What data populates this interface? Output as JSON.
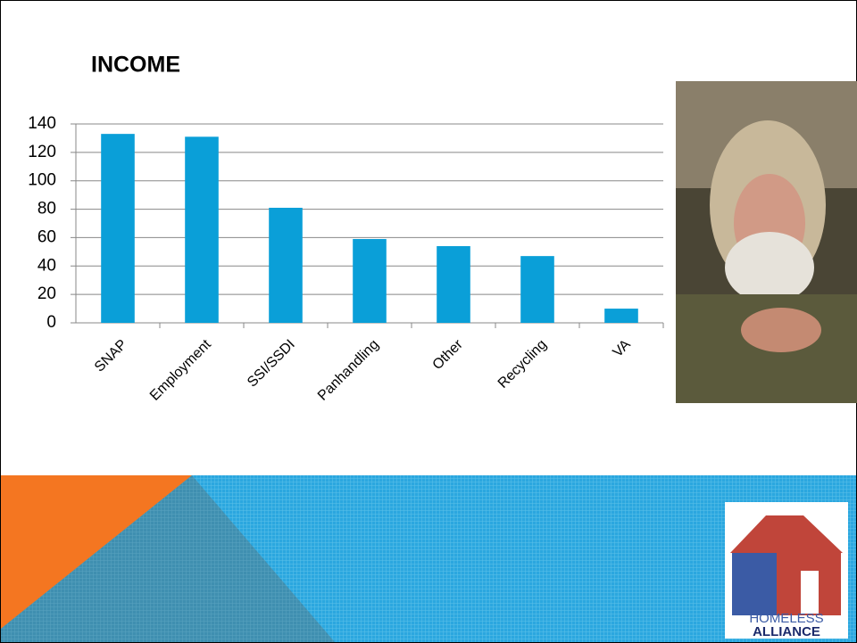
{
  "chart_data": {
    "type": "bar",
    "title": "INCOME",
    "categories": [
      "SNAP",
      "Employment",
      "SSI/SSDI",
      "Panhandling",
      "Other",
      "Recycling",
      "VA"
    ],
    "values": [
      133,
      131,
      81,
      59,
      54,
      47,
      10
    ],
    "color": "#0a9fd8",
    "ylim": [
      0,
      140
    ],
    "yticks": [
      0,
      20,
      40,
      60,
      80,
      100,
      120,
      140
    ],
    "grid": true
  },
  "logo": {
    "line1": "HOMELESS",
    "line2": "ALLIANCE"
  }
}
